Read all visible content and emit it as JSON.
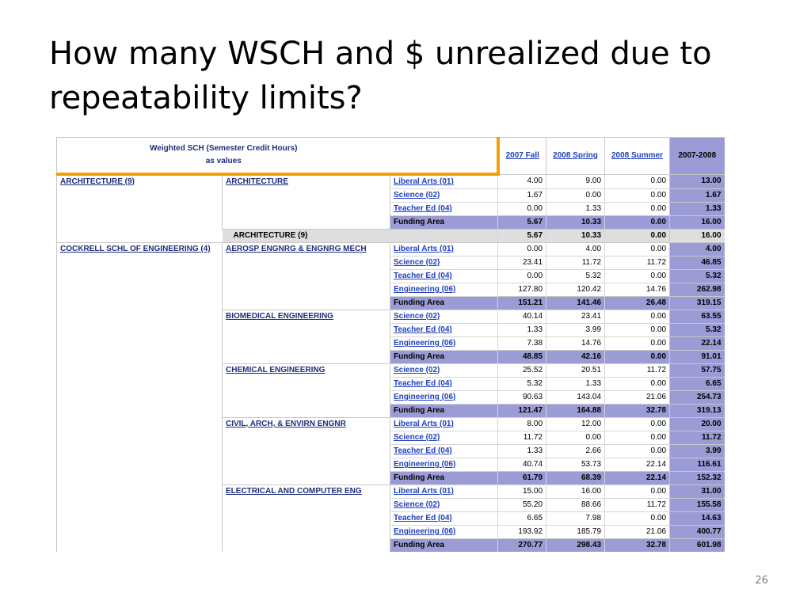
{
  "slide": {
    "title": "How many WSCH and $ unrealized due to repeatability limits?",
    "page_number": "26"
  },
  "report": {
    "caption_line1": "Weighted SCH (Semester Credit Hours)",
    "caption_line2": "as values",
    "columns": [
      "2007 Fall",
      "2008 Spring",
      "2008 Summer",
      "2007-2008"
    ],
    "colleges": [
      {
        "name": "ARCHITECTURE (9)",
        "departments": [
          {
            "name": "ARCHITECTURE",
            "rows": [
              {
                "area": "Liberal Arts (01)",
                "values": [
                  "4.00",
                  "9.00",
                  "0.00",
                  "13.00"
                ]
              },
              {
                "area": "Science (02)",
                "values": [
                  "1.67",
                  "0.00",
                  "0.00",
                  "1.67"
                ]
              },
              {
                "area": "Teacher Ed (04)",
                "values": [
                  "0.00",
                  "1.33",
                  "0.00",
                  "1.33"
                ]
              }
            ],
            "funding": {
              "label": "Funding Area",
              "values": [
                "5.67",
                "10.33",
                "0.00",
                "16.00"
              ]
            }
          }
        ],
        "subtotal": {
          "label": "ARCHITECTURE (9)",
          "values": [
            "5.67",
            "10.33",
            "0.00",
            "16.00"
          ]
        }
      },
      {
        "name": "COCKRELL SCHL OF ENGINEERING (4)",
        "departments": [
          {
            "name": "AEROSP ENGNRG & ENGNRG MECH",
            "rows": [
              {
                "area": "Liberal Arts (01)",
                "values": [
                  "0.00",
                  "4.00",
                  "0.00",
                  "4.00"
                ]
              },
              {
                "area": "Science (02)",
                "values": [
                  "23.41",
                  "11.72",
                  "11.72",
                  "46.85"
                ]
              },
              {
                "area": "Teacher Ed (04)",
                "values": [
                  "0.00",
                  "5.32",
                  "0.00",
                  "5.32"
                ]
              },
              {
                "area": "Engineering (06)",
                "values": [
                  "127.80",
                  "120.42",
                  "14.76",
                  "262.98"
                ]
              }
            ],
            "funding": {
              "label": "Funding Area",
              "values": [
                "151.21",
                "141.46",
                "26.48",
                "319.15"
              ]
            }
          },
          {
            "name": "BIOMEDICAL ENGINEERING",
            "rows": [
              {
                "area": "Science (02)",
                "values": [
                  "40.14",
                  "23.41",
                  "0.00",
                  "63.55"
                ]
              },
              {
                "area": "Teacher Ed (04)",
                "values": [
                  "1.33",
                  "3.99",
                  "0.00",
                  "5.32"
                ]
              },
              {
                "area": "Engineering (06)",
                "values": [
                  "7.38",
                  "14.76",
                  "0.00",
                  "22.14"
                ]
              }
            ],
            "funding": {
              "label": "Funding Area",
              "values": [
                "48.85",
                "42.16",
                "0.00",
                "91.01"
              ]
            }
          },
          {
            "name": "CHEMICAL ENGINEERING",
            "rows": [
              {
                "area": "Science (02)",
                "values": [
                  "25.52",
                  "20.51",
                  "11.72",
                  "57.75"
                ]
              },
              {
                "area": "Teacher Ed (04)",
                "values": [
                  "5.32",
                  "1.33",
                  "0.00",
                  "6.65"
                ]
              },
              {
                "area": "Engineering (06)",
                "values": [
                  "90.63",
                  "143.04",
                  "21.06",
                  "254.73"
                ]
              }
            ],
            "funding": {
              "label": "Funding Area",
              "values": [
                "121.47",
                "164.88",
                "32.78",
                "319.13"
              ]
            }
          },
          {
            "name": "CIVIL, ARCH, & ENVIRN ENGNR",
            "rows": [
              {
                "area": "Liberal Arts (01)",
                "values": [
                  "8.00",
                  "12.00",
                  "0.00",
                  "20.00"
                ]
              },
              {
                "area": "Science (02)",
                "values": [
                  "11.72",
                  "0.00",
                  "0.00",
                  "11.72"
                ]
              },
              {
                "area": "Teacher Ed (04)",
                "values": [
                  "1.33",
                  "2.66",
                  "0.00",
                  "3.99"
                ]
              },
              {
                "area": "Engineering (06)",
                "values": [
                  "40.74",
                  "53.73",
                  "22.14",
                  "116.61"
                ]
              }
            ],
            "funding": {
              "label": "Funding Area",
              "values": [
                "61.79",
                "68.39",
                "22.14",
                "152.32"
              ]
            }
          },
          {
            "name": "ELECTRICAL AND COMPUTER ENG",
            "rows": [
              {
                "area": "Liberal Arts (01)",
                "values": [
                  "15.00",
                  "16.00",
                  "0.00",
                  "31.00"
                ]
              },
              {
                "area": "Science (02)",
                "values": [
                  "55.20",
                  "88.66",
                  "11.72",
                  "155.58"
                ]
              },
              {
                "area": "Teacher Ed (04)",
                "values": [
                  "6.65",
                  "7.98",
                  "0.00",
                  "14.63"
                ]
              },
              {
                "area": "Engineering (06)",
                "values": [
                  "193.92",
                  "185.79",
                  "21.06",
                  "400.77"
                ]
              }
            ],
            "funding": {
              "label": "Funding Area",
              "values": [
                "270.77",
                "298.43",
                "32.78",
                "601.98"
              ]
            }
          }
        ]
      }
    ]
  }
}
